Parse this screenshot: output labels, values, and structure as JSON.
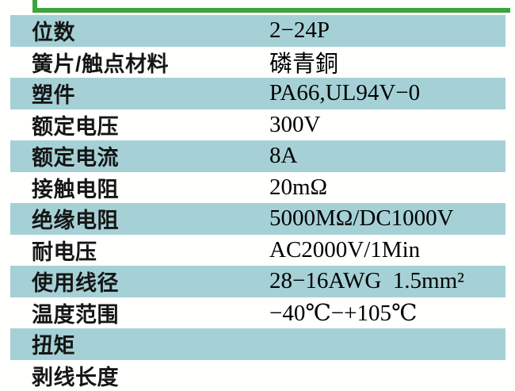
{
  "colors": {
    "frame_green": "#3aa53d",
    "row_teal": "#a5d1d6"
  },
  "frame": {
    "description": "bottom-left corner of green outlined box, content cropped above"
  },
  "table": {
    "rows": [
      {
        "label": "位数",
        "value": "2−24P"
      },
      {
        "label": "簧片/触点材料",
        "value": "磷青銅"
      },
      {
        "label": "塑件",
        "value": "PA66,UL94V−0"
      },
      {
        "label": "额定电压",
        "value": "300V"
      },
      {
        "label": "额定电流",
        "value": "8A"
      },
      {
        "label": "接触电阻",
        "value": "20mΩ"
      },
      {
        "label": "绝缘电阻",
        "value": "5000MΩ/DC1000V"
      },
      {
        "label": "耐电压",
        "value": "AC2000V/1Min"
      },
      {
        "label": "使用线径",
        "value": "28−16AWG  1.5mm²"
      },
      {
        "label": "温度范围",
        "value": "−40℃−+105℃"
      },
      {
        "label": "扭矩",
        "value": ""
      },
      {
        "label": "剥线长度",
        "value": ""
      }
    ]
  }
}
